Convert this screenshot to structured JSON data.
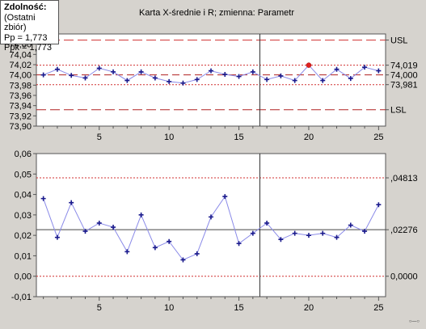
{
  "capability_box": {
    "title": "Zdolność:",
    "subtitle": "(Ostatni zbiór)",
    "pp": "Pp =  1,773",
    "ppk": "Ppk =  1,773"
  },
  "corner_label": "○—○",
  "chart_data": [
    {
      "type": "line",
      "title": "Karta X-średnie i R; zmienna:  Parametr",
      "x": [
        1,
        2,
        3,
        4,
        5,
        6,
        7,
        8,
        9,
        10,
        11,
        12,
        13,
        14,
        15,
        16,
        17,
        18,
        19,
        20,
        21,
        22,
        23,
        24,
        25
      ],
      "values": [
        74.0,
        74.011,
        73.999,
        73.994,
        74.013,
        74.006,
        73.989,
        74.006,
        73.994,
        73.987,
        73.984,
        73.991,
        74.008,
        74.001,
        73.997,
        74.006,
        73.991,
        73.998,
        73.989,
        74.019,
        73.989,
        74.011,
        73.993,
        74.015,
        74.008
      ],
      "highlight_points": [
        20
      ],
      "x_ticks": [
        5,
        10,
        15,
        20,
        25
      ],
      "y_ticks": [
        "74,06",
        "74,04",
        "74,02",
        "74,00",
        "73,98",
        "73,96",
        "73,94",
        "73,92",
        "73,90"
      ],
      "y_tick_values": [
        74.06,
        74.04,
        74.02,
        74.0,
        73.98,
        73.96,
        73.94,
        73.92,
        73.9
      ],
      "ylim": [
        73.9,
        74.08
      ],
      "xlim": [
        0.5,
        25.5
      ],
      "divider_x": 16.5,
      "reference_lines": [
        {
          "value": 74.068,
          "label": "USL",
          "style": "long-dash",
          "color": "#d03030"
        },
        {
          "value": 74.019,
          "label": "74,019",
          "style": "dotted",
          "color": "#d03030"
        },
        {
          "value": 74.0,
          "label": "74,000",
          "style": "dash",
          "color": "#b02020"
        },
        {
          "value": 73.981,
          "label": "73,981",
          "style": "dotted",
          "color": "#d03030"
        },
        {
          "value": 73.932,
          "label": "LSL",
          "style": "long-dash",
          "color": "#b02020"
        }
      ],
      "grid": false
    },
    {
      "type": "line",
      "x": [
        1,
        2,
        3,
        4,
        5,
        6,
        7,
        8,
        9,
        10,
        11,
        12,
        13,
        14,
        15,
        16,
        17,
        18,
        19,
        20,
        21,
        22,
        23,
        24,
        25
      ],
      "values": [
        0.038,
        0.019,
        0.036,
        0.022,
        0.026,
        0.024,
        0.012,
        0.03,
        0.014,
        0.017,
        0.008,
        0.011,
        0.029,
        0.039,
        0.016,
        0.021,
        0.026,
        0.018,
        0.021,
        0.02,
        0.021,
        0.019,
        0.025,
        0.022,
        0.035
      ],
      "x_ticks": [
        5,
        10,
        15,
        20,
        25
      ],
      "y_ticks": [
        "0,06",
        "0,05",
        "0,04",
        "0,03",
        "0,02",
        "0,01",
        "0,00",
        "-0,01"
      ],
      "y_tick_values": [
        0.06,
        0.05,
        0.04,
        0.03,
        0.02,
        0.01,
        0.0,
        -0.01
      ],
      "ylim": [
        -0.01,
        0.06
      ],
      "xlim": [
        0.5,
        25.5
      ],
      "divider_x": 16.5,
      "reference_lines": [
        {
          "value": 0.04813,
          "label": ",04813",
          "style": "dotted",
          "color": "#d03030"
        },
        {
          "value": 0.02276,
          "label": ",02276",
          "style": "solid",
          "color": "#444444"
        },
        {
          "value": 0.0,
          "label": "0,0000",
          "style": "dotted",
          "color": "#d03030"
        }
      ],
      "grid": false
    }
  ]
}
